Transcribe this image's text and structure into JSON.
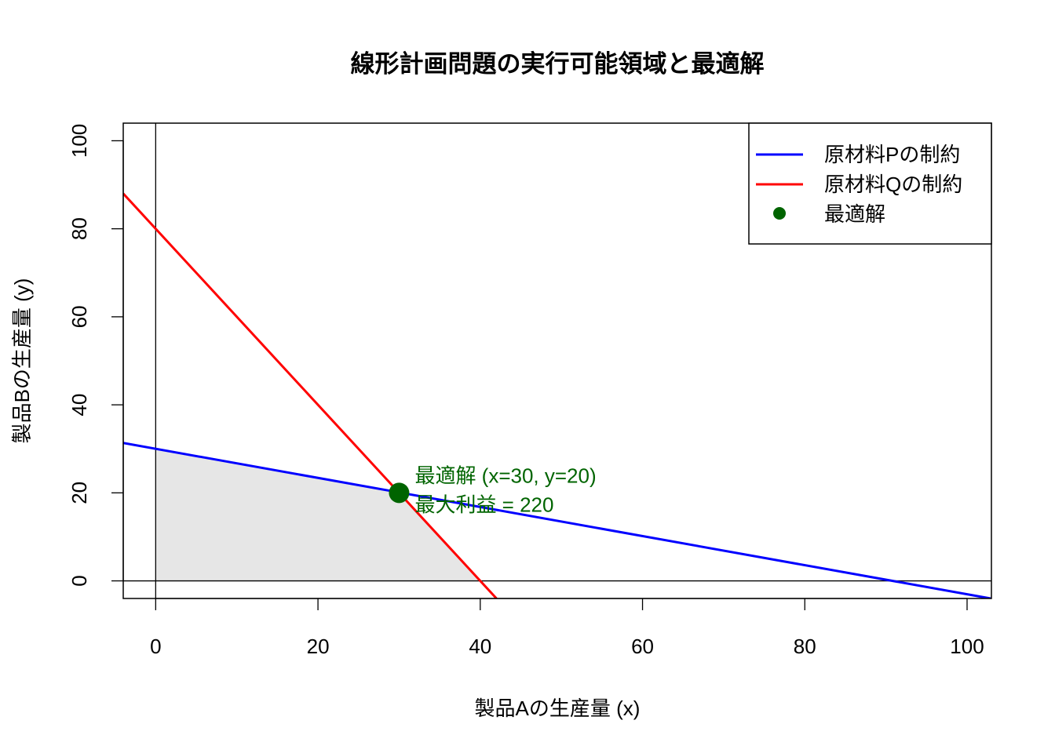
{
  "chart_data": {
    "type": "line",
    "title": "線形計画問題の実行可能領域と最適解",
    "xlabel": "製品Aの生産量 (x)",
    "ylabel": "製品Bの生産量 (y)",
    "xlim": [
      -4,
      103
    ],
    "ylim": [
      -4,
      104
    ],
    "x_ticks": [
      0,
      20,
      40,
      60,
      80,
      100
    ],
    "y_ticks": [
      0,
      20,
      40,
      60,
      80,
      100
    ],
    "grid": false,
    "legend_position": "top-right",
    "series": [
      {
        "name": "原材料Pの制約",
        "color": "#0000ff",
        "x": [
          -4,
          102.9
        ],
        "y": [
          31.33,
          -4
        ],
        "equation": "x + 3y = 90"
      },
      {
        "name": "原材料Qの制約",
        "color": "#ff0000",
        "x": [
          -4,
          42
        ],
        "y": [
          88,
          -4
        ],
        "equation": "2x + y = 80"
      }
    ],
    "feasible_region": {
      "color": "#e6e6e6",
      "vertices": [
        [
          0,
          0
        ],
        [
          0,
          30
        ],
        [
          30,
          20
        ],
        [
          40,
          0
        ]
      ]
    },
    "optimum": {
      "name": "最適解",
      "color": "#006400",
      "x": 30,
      "y": 20
    },
    "annotations": [
      "最適解 (x=30, y=20)",
      "最大利益 = 220"
    ]
  }
}
